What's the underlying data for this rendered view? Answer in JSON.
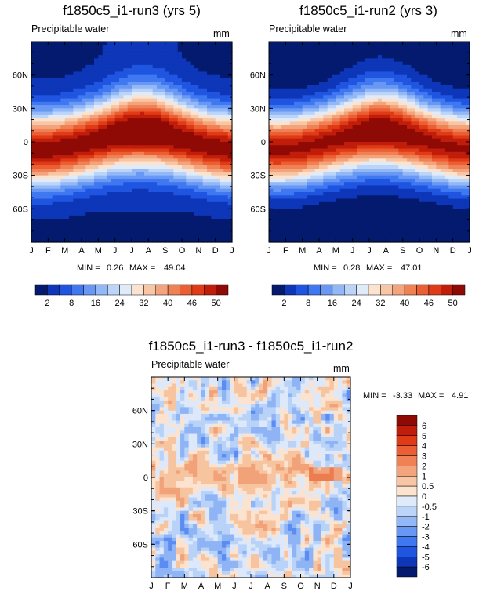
{
  "chart_data": [
    {
      "type": "heatmap",
      "title": "f1850c5_i1-run3 (yrs 5)",
      "subtitle": "Precipitable water",
      "units": "mm",
      "x_ticks": [
        "J",
        "F",
        "M",
        "A",
        "M",
        "J",
        "J",
        "A",
        "S",
        "O",
        "N",
        "D",
        "J"
      ],
      "y_ticks": [
        "60N",
        "30N",
        "0",
        "30S",
        "60S"
      ],
      "y_tick_values": [
        60,
        30,
        0,
        -30,
        -60
      ],
      "ylim": [
        -90,
        90
      ],
      "min_label": "MIN =",
      "min_value": "0.26",
      "max_label": "MAX =",
      "max_value": "49.04",
      "colorbar_labels": [
        "2",
        "8",
        "16",
        "24",
        "32",
        "40",
        "46",
        "50"
      ],
      "colorbar_colors": [
        "#041a6f",
        "#0d36b8",
        "#1f55e0",
        "#3f78f0",
        "#6898f4",
        "#93b8f7",
        "#bcd4f8",
        "#e0ebfa",
        "#fbe3cf",
        "#f8c6a4",
        "#f4a47c",
        "#f08155",
        "#ec5e33",
        "#df3b16",
        "#c01d0a",
        "#8f0a05"
      ]
    },
    {
      "type": "heatmap",
      "title": "f1850c5_i1-run2 (yrs 3)",
      "subtitle": "Precipitable water",
      "units": "mm",
      "x_ticks": [
        "J",
        "F",
        "M",
        "A",
        "M",
        "J",
        "J",
        "A",
        "S",
        "O",
        "N",
        "D",
        "J"
      ],
      "y_ticks": [
        "60N",
        "30N",
        "0",
        "30S",
        "60S"
      ],
      "y_tick_values": [
        60,
        30,
        0,
        -30,
        -60
      ],
      "ylim": [
        -90,
        90
      ],
      "min_label": "MIN =",
      "min_value": "0.28",
      "max_label": "MAX =",
      "max_value": "47.01",
      "colorbar_labels": [
        "2",
        "8",
        "16",
        "24",
        "32",
        "40",
        "46",
        "50"
      ],
      "colorbar_colors": [
        "#041a6f",
        "#0d36b8",
        "#1f55e0",
        "#3f78f0",
        "#6898f4",
        "#93b8f7",
        "#bcd4f8",
        "#e0ebfa",
        "#fbe3cf",
        "#f8c6a4",
        "#f4a47c",
        "#f08155",
        "#ec5e33",
        "#df3b16",
        "#c01d0a",
        "#8f0a05"
      ]
    },
    {
      "type": "heatmap",
      "title": "f1850c5_i1-run3 - f1850c5_i1-run2",
      "subtitle": "Precipitable water",
      "units": "mm",
      "x_ticks": [
        "J",
        "F",
        "M",
        "A",
        "M",
        "J",
        "J",
        "A",
        "S",
        "O",
        "N",
        "D",
        "J"
      ],
      "y_ticks": [
        "60N",
        "30N",
        "0",
        "30S",
        "60S"
      ],
      "y_tick_values": [
        60,
        30,
        0,
        -30,
        -60
      ],
      "ylim": [
        -90,
        90
      ],
      "min_label": "MIN =",
      "min_value": "-3.33",
      "max_label": "MAX =",
      "max_value": "4.91",
      "colorbar_labels": [
        "6",
        "5",
        "4",
        "3",
        "2",
        "1",
        "0.5",
        "0",
        "-0.5",
        "-1",
        "-2",
        "-3",
        "-4",
        "-5",
        "-6"
      ],
      "colorbar_colors": [
        "#8f0a05",
        "#c01d0a",
        "#df3b16",
        "#ec5e33",
        "#f08155",
        "#f4a47c",
        "#f8c6a4",
        "#fbe3cf",
        "#e0ebfa",
        "#bcd4f8",
        "#93b8f7",
        "#6898f4",
        "#3f78f0",
        "#1f55e0",
        "#0d36b8",
        "#041a6f"
      ]
    }
  ]
}
